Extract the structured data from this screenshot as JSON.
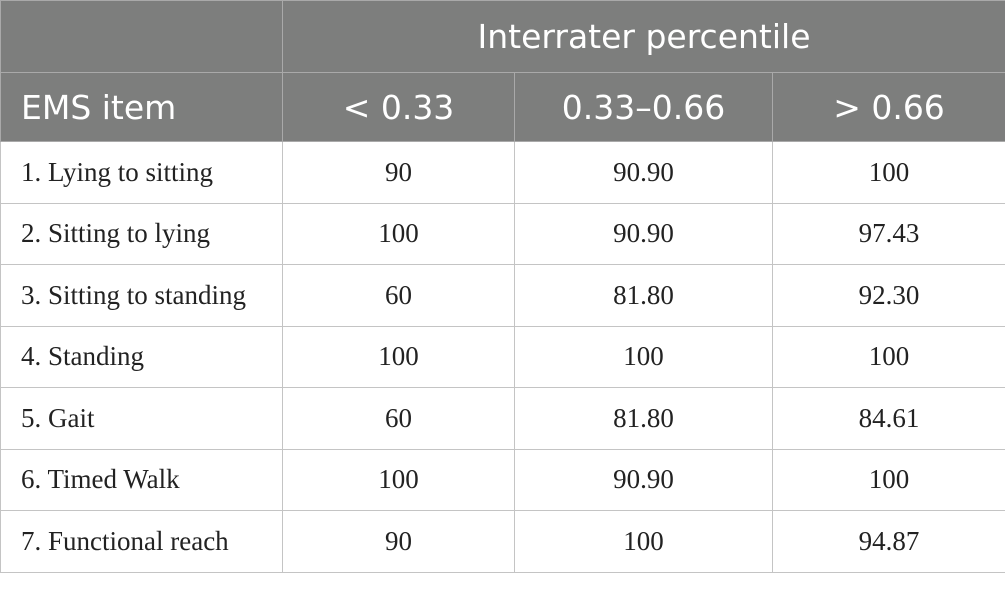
{
  "table": {
    "group_header": "Interrater percentile",
    "columns": [
      "EMS item",
      "< 0.33",
      "0.33–0.66",
      "> 0.66"
    ],
    "rows": [
      [
        "1. Lying to sitting",
        "90",
        "90.90",
        "100"
      ],
      [
        "2. Sitting to lying",
        "100",
        "90.90",
        "97.43"
      ],
      [
        "3. Sitting to standing",
        "60",
        "81.80",
        "92.30"
      ],
      [
        "4. Standing",
        "100",
        "100",
        "100"
      ],
      [
        "5. Gait",
        "60",
        "81.80",
        "84.61"
      ],
      [
        "6. Timed Walk",
        "100",
        "90.90",
        "100"
      ],
      [
        "7. Functional reach",
        "90",
        "100",
        "94.87"
      ]
    ]
  }
}
